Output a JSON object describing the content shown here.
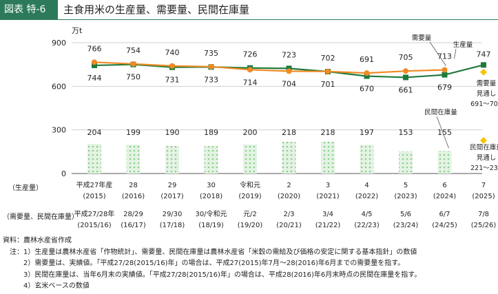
{
  "header": {
    "figure_no": "図表 特-6",
    "title": "主食用米の生産量、需要量、民間在庫量"
  },
  "chart_data": {
    "type": "line",
    "unit": "万t",
    "ylim": [
      0,
      900
    ],
    "yticks": [
      0,
      300,
      600,
      900
    ],
    "row_labels": {
      "production_year": "（生産量）",
      "demand_year": "（需要量、民間在庫量）"
    },
    "production_years": [
      [
        "平成27年産",
        "(2015)"
      ],
      [
        "28",
        "(2016)"
      ],
      [
        "29",
        "(2017)"
      ],
      [
        "30",
        "(2018)"
      ],
      [
        "令和元",
        "(2019)"
      ],
      [
        "2",
        "(2020)"
      ],
      [
        "3",
        "(2021)"
      ],
      [
        "4",
        "(2022)"
      ],
      [
        "5",
        "(2023)"
      ],
      [
        "6",
        "(2024)"
      ],
      [
        "7",
        "(2025)"
      ]
    ],
    "demand_years": [
      [
        "平成27/28年",
        "(2015/16)"
      ],
      [
        "28/29",
        "(16/17)"
      ],
      [
        "29/30",
        "(17/18)"
      ],
      [
        "30/令和元",
        "(18/19)"
      ],
      [
        "元/2",
        "(19/20)"
      ],
      [
        "2/3",
        "(20/21)"
      ],
      [
        "3/4",
        "(21/22)"
      ],
      [
        "4/5",
        "(22/23)"
      ],
      [
        "5/6",
        "(23/24)"
      ],
      [
        "6/7",
        "(24/25)"
      ],
      [
        "7/8",
        "(25/26)"
      ]
    ],
    "series": [
      {
        "name": "生産量",
        "color": "#1e7a3c",
        "marker": "square",
        "values": [
          744,
          750,
          731,
          733,
          726,
          723,
          701,
          670,
          661,
          679,
          747
        ]
      },
      {
        "name": "需要量",
        "color": "#f08a24",
        "marker": "circle",
        "values": [
          766,
          754,
          740,
          735,
          714,
          704,
          702,
          691,
          705,
          713,
          null
        ]
      },
      {
        "name": "民間在庫量",
        "color": "#9fd49f",
        "type": "bar",
        "values": [
          204,
          199,
          190,
          189,
          200,
          218,
          218,
          197,
          153,
          155,
          null
        ]
      }
    ],
    "forecast": [
      {
        "series": "需要量",
        "label": [
          "需要量",
          "見通し",
          "691～704"
        ],
        "low": 691,
        "high": 704,
        "color": "#f7c300"
      },
      {
        "series": "民間在庫量",
        "label": [
          "民間在庫量",
          "見通し",
          "221～234"
        ],
        "low": 221,
        "high": 234,
        "color": "#f7c300"
      }
    ],
    "callouts": {
      "demand": "需要量",
      "production": "生産量",
      "stock": "民間在庫量"
    }
  },
  "notes": [
    "資料：農林水産省作成",
    "　注：1）生産量は農林水産省「作物統計」、需要量、民間在庫量は農林水産省「米穀の需給及び価格の安定に関する基本指針」の数値",
    "　　　2）需要量は、実績値。「平成27/28(2015/16)年」の場合は、平成27(2015)年7月～28(2016)年6月までの需要量を指す。",
    "　　　3）民間在庫量は、当年6月末の実績値。「平成27/28(2015/16)年」の場合は、平成28(2016)年6月末時点の民間在庫量を指す。",
    "　　　4）玄米ベースの数値"
  ]
}
